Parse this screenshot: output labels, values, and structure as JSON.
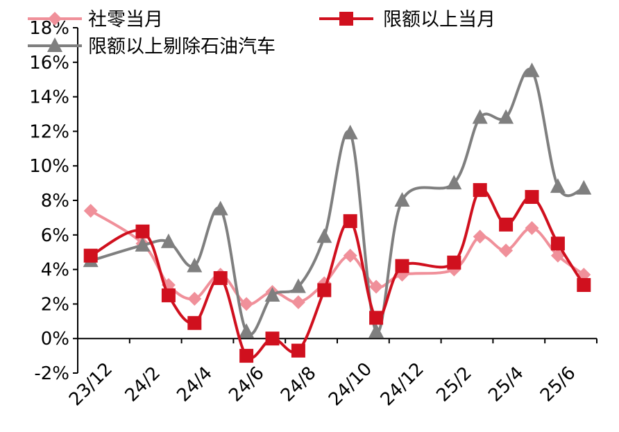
{
  "chart_data": {
    "type": "line",
    "title": "",
    "xlabel": "",
    "ylabel": "",
    "ylim": [
      -2,
      18
    ],
    "y_tick_values": [
      -2,
      0,
      2,
      4,
      6,
      8,
      10,
      12,
      14,
      16,
      18
    ],
    "y_tick_labels": [
      "-2%",
      "0%",
      "2%",
      "4%",
      "6%",
      "8%",
      "10%",
      "12%",
      "14%",
      "16%",
      "18%"
    ],
    "x_labels": [
      "23/12",
      "24/2",
      "24/4",
      "24/6",
      "24/8",
      "24/10",
      "24/12",
      "25/2",
      "25/4",
      "25/6"
    ],
    "x": [
      "23/12",
      "24/1",
      "24/2",
      "24/3",
      "24/4",
      "24/5",
      "24/6",
      "24/7",
      "24/8",
      "24/9",
      "24/10",
      "24/11",
      "24/12",
      "25/1",
      "25/2",
      "25/3",
      "25/4",
      "25/5",
      "25/6",
      "25/7"
    ],
    "grid": false,
    "legend_position": "top",
    "series": [
      {
        "name": "社零当月",
        "color": "#f0909a",
        "marker": "diamond",
        "values": [
          7.4,
          null,
          5.5,
          3.1,
          2.3,
          3.7,
          2.0,
          2.7,
          2.1,
          3.2,
          4.8,
          3.0,
          3.7,
          null,
          4.0,
          5.9,
          5.1,
          6.4,
          4.8,
          3.7
        ]
      },
      {
        "name": "限额以上当月",
        "color": "#d0101e",
        "marker": "square",
        "values": [
          4.8,
          null,
          6.2,
          2.5,
          0.9,
          3.5,
          -1.0,
          0.0,
          -0.7,
          2.8,
          6.8,
          1.2,
          4.2,
          null,
          4.4,
          8.6,
          6.6,
          8.2,
          5.5,
          3.1
        ]
      },
      {
        "name": "限额以上剔除石油汽车",
        "color": "#7f7f7f",
        "marker": "triangle",
        "values": [
          4.5,
          null,
          5.4,
          5.6,
          4.2,
          7.5,
          0.4,
          2.5,
          3.0,
          5.9,
          11.9,
          0.4,
          8.0,
          null,
          9.0,
          12.8,
          12.8,
          15.5,
          8.8,
          8.7
        ]
      }
    ]
  }
}
